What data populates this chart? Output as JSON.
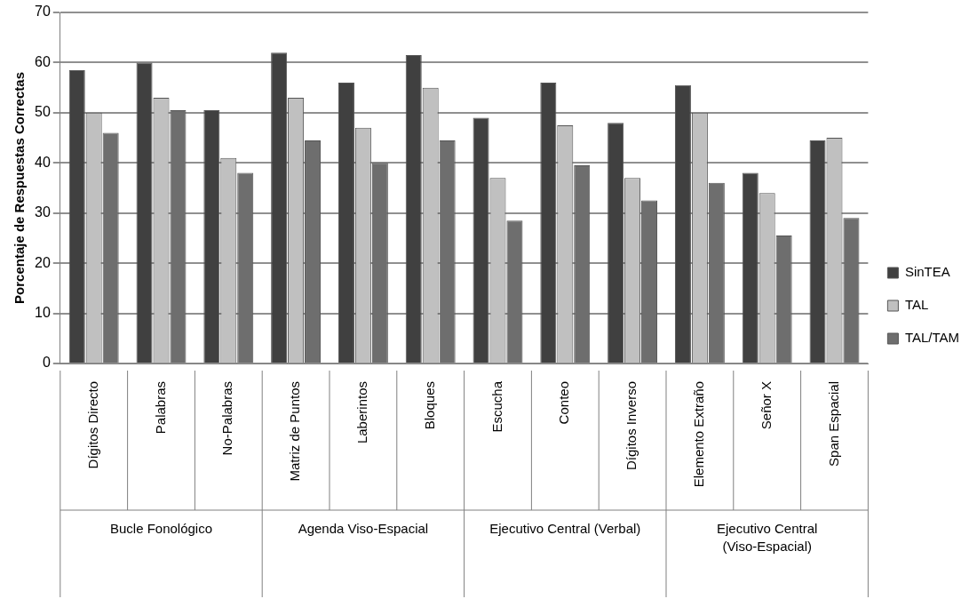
{
  "chart_data": {
    "type": "bar",
    "ylabel": "Porcentaje de Respuestas Correctas",
    "categories": [
      "Dígitos Directo",
      "Palabras",
      "No-Palabras",
      "Matriz de Puntos",
      "Laberintos",
      "Bloques",
      "Escucha",
      "Conteo",
      "Dígitos Inverso",
      "Elemento Extraño",
      "Señor X",
      "Span Espacial"
    ],
    "series": [
      {
        "name": "SinTEA",
        "color": "#404040",
        "values": [
          58.5,
          60,
          50.5,
          62,
          56,
          61.5,
          49,
          56,
          48,
          55.5,
          38,
          44.5
        ]
      },
      {
        "name": "TAL",
        "color": "#c0c0c0",
        "values": [
          50,
          53,
          41,
          53,
          47,
          55,
          37,
          47.5,
          37,
          50,
          34,
          45
        ]
      },
      {
        "name": "TAL/TAM",
        "color": "#6e6e6e",
        "values": [
          46,
          50.5,
          38,
          44.5,
          40,
          44.5,
          28.5,
          39.5,
          32.5,
          36,
          25.5,
          29
        ]
      }
    ],
    "annotations": [
      "Bucle Fonológico",
      "Agenda Viso-Espacial",
      "Ejecutivo Central (Verbal)",
      "Ejecutivo Central (Viso-Espacial)"
    ],
    "ylim": [
      0,
      70
    ],
    "yticks": [
      0,
      10,
      20,
      30,
      40,
      50,
      60,
      70
    ],
    "grid": "y",
    "legend": "right"
  }
}
